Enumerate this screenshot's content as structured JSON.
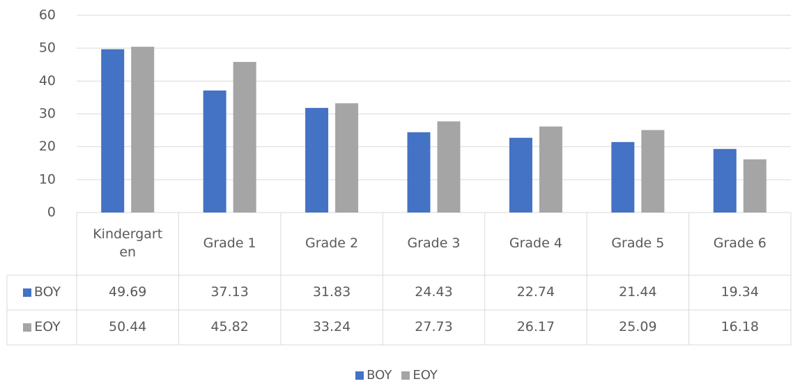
{
  "chart_data": {
    "type": "bar",
    "categories": [
      "Kindergarten",
      "Grade 1",
      "Grade 2",
      "Grade 3",
      "Grade 4",
      "Grade 5",
      "Grade 6"
    ],
    "series": [
      {
        "name": "BOY",
        "color": "#4472c4",
        "values": [
          49.69,
          37.13,
          31.83,
          24.43,
          22.74,
          21.44,
          19.34
        ]
      },
      {
        "name": "EOY",
        "color": "#a5a5a5",
        "values": [
          50.44,
          45.82,
          33.24,
          27.73,
          26.17,
          25.09,
          16.18
        ]
      }
    ],
    "ylim": [
      0,
      60
    ],
    "yticks": [
      0,
      10,
      20,
      30,
      40,
      50,
      60
    ],
    "grid": true,
    "legend": "bottom",
    "data_table": true
  }
}
